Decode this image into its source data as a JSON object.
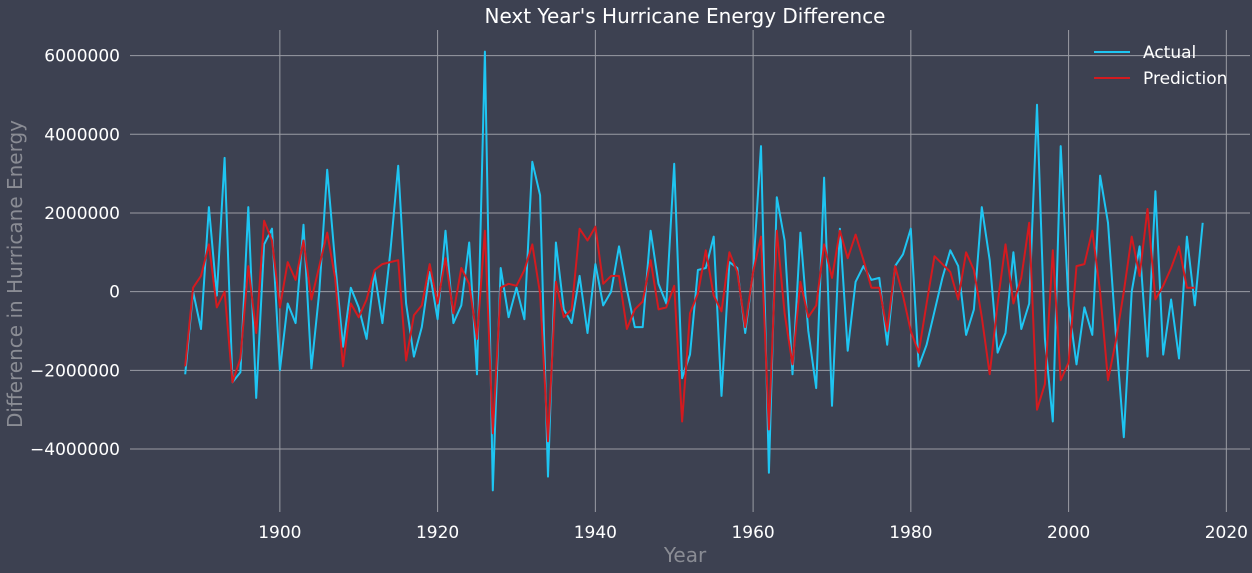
{
  "chart_data": {
    "type": "line",
    "title": "Next Year's Hurricane Energy Difference",
    "xlabel": "Year",
    "ylabel": "Difference in Hurricane Energy",
    "xlim": [
      1881,
      2023
    ],
    "ylim": [
      -5600000,
      6650000
    ],
    "xticks": [
      1900,
      1920,
      1940,
      1960,
      1980,
      2000,
      2020
    ],
    "yticks": [
      -4000000,
      -2000000,
      0,
      2000000,
      4000000,
      6000000
    ],
    "xtick_labels": [
      "1900",
      "1920",
      "1940",
      "1960",
      "1980",
      "2000",
      "2020"
    ],
    "ytick_labels": [
      "−4000000",
      "−2000000",
      "0",
      "2000000",
      "4000000",
      "6000000"
    ],
    "grid": true,
    "legend_position": "top-right",
    "x_start": 1888,
    "series": [
      {
        "name": "Actual",
        "color": "#1ec5f2",
        "values": [
          -2100000,
          0,
          -950000,
          2150000,
          -100000,
          3400000,
          -2300000,
          -2050000,
          2150000,
          -2700000,
          1200000,
          1600000,
          -2000000,
          -300000,
          -800000,
          1700000,
          -1950000,
          0,
          3100000,
          750000,
          -1400000,
          100000,
          -400000,
          -1200000,
          500000,
          -800000,
          1000000,
          3200000,
          -300000,
          -1650000,
          -900000,
          500000,
          -700000,
          1550000,
          -800000,
          -350000,
          1250000,
          -2100000,
          6100000,
          -5050000,
          600000,
          -650000,
          100000,
          -700000,
          3300000,
          2450000,
          -4700000,
          1250000,
          -450000,
          -800000,
          400000,
          -1050000,
          700000,
          -350000,
          0,
          1150000,
          50000,
          -900000,
          -900000,
          1550000,
          200000,
          -300000,
          3250000,
          -2200000,
          -1600000,
          550000,
          600000,
          1400000,
          -2650000,
          750000,
          600000,
          -1050000,
          500000,
          3700000,
          -4600000,
          2400000,
          1300000,
          -2100000,
          1500000,
          -1000000,
          -2450000,
          2900000,
          -2900000,
          1600000,
          -1500000,
          250000,
          650000,
          300000,
          350000,
          -1350000,
          650000,
          950000,
          1600000,
          -1900000,
          -1350000,
          -500000,
          350000,
          1050000,
          650000,
          -1100000,
          -450000,
          2150000,
          800000,
          -1550000,
          -1050000,
          1000000,
          -950000,
          -300000,
          4750000,
          -1200000,
          -3300000,
          3700000,
          -350000,
          -1850000,
          -400000,
          -1100000,
          2950000,
          1750000,
          -1100000,
          -3700000,
          0,
          1150000,
          -1650000,
          2550000,
          -1600000,
          -200000,
          -1700000,
          1400000,
          -350000,
          1750000
        ]
      },
      {
        "name": "Prediction",
        "color": "#d41a1f",
        "values": [
          -1900000,
          100000,
          400000,
          1200000,
          -400000,
          0,
          -2300000,
          -1700000,
          650000,
          -1050000,
          1800000,
          1300000,
          -400000,
          750000,
          300000,
          1300000,
          -200000,
          650000,
          1500000,
          350000,
          -1900000,
          -300000,
          -650000,
          -200000,
          550000,
          700000,
          750000,
          800000,
          -1750000,
          -600000,
          -350000,
          700000,
          -300000,
          850000,
          -550000,
          600000,
          200000,
          -1200000,
          1550000,
          -3600000,
          100000,
          200000,
          150000,
          550000,
          1200000,
          -50000,
          -3800000,
          250000,
          -650000,
          -450000,
          1600000,
          1300000,
          1650000,
          200000,
          400000,
          400000,
          -950000,
          -450000,
          -250000,
          800000,
          -450000,
          -400000,
          150000,
          -3300000,
          -550000,
          -50000,
          1050000,
          -100000,
          -500000,
          1000000,
          500000,
          -900000,
          500000,
          1400000,
          -3500000,
          1550000,
          -550000,
          -1850000,
          250000,
          -650000,
          -350000,
          1200000,
          350000,
          1550000,
          850000,
          1450000,
          800000,
          100000,
          100000,
          -1000000,
          650000,
          -100000,
          -1000000,
          -1550000,
          -300000,
          900000,
          700000,
          500000,
          -200000,
          1000000,
          550000,
          -650000,
          -2100000,
          -300000,
          1200000,
          -300000,
          350000,
          1750000,
          -3000000,
          -2350000,
          1050000,
          -2250000,
          -1800000,
          650000,
          700000,
          1550000,
          0,
          -2250000,
          -1250000,
          0,
          1400000,
          400000,
          2100000,
          -200000,
          150000,
          600000,
          1150000,
          100000,
          100000
        ]
      }
    ]
  }
}
